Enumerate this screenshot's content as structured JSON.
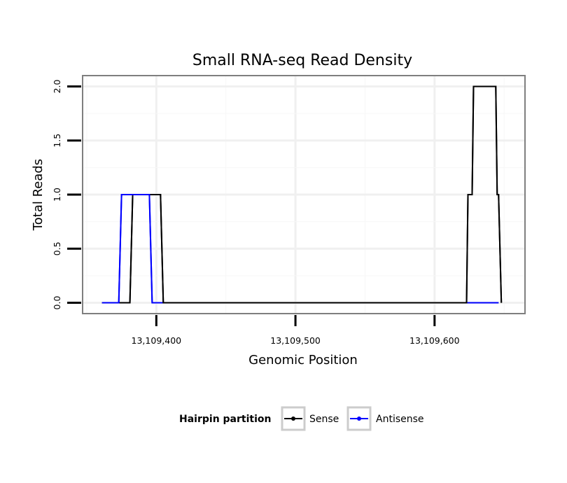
{
  "chart_data": {
    "type": "line",
    "title": "Small RNA-seq Read Density",
    "xlabel": "Genomic Position",
    "ylabel": "Total Reads",
    "xlim": [
      13109347,
      13109665
    ],
    "ylim": [
      -0.1,
      2.1
    ],
    "x_ticks": [
      {
        "value": 13109400,
        "label": "13,109,400"
      },
      {
        "value": 13109500,
        "label": "13,109,500"
      },
      {
        "value": 13109600,
        "label": "13,109,600"
      }
    ],
    "y_ticks": [
      {
        "value": 0.0,
        "label": "0.0"
      },
      {
        "value": 0.5,
        "label": "0.5"
      },
      {
        "value": 1.0,
        "label": "1.0"
      },
      {
        "value": 1.5,
        "label": "1.5"
      },
      {
        "value": 2.0,
        "label": "2.0"
      }
    ],
    "grid": true,
    "legend": {
      "title": "Hairpin partition",
      "position": "bottom"
    },
    "series": [
      {
        "name": "Sense",
        "color": "#000000",
        "points": [
          [
            13109361,
            0
          ],
          [
            13109381,
            0
          ],
          [
            13109383,
            1
          ],
          [
            13109403,
            1
          ],
          [
            13109405,
            0
          ],
          [
            13109623,
            0
          ],
          [
            13109624,
            1
          ],
          [
            13109627,
            1
          ],
          [
            13109628,
            2
          ],
          [
            13109644,
            2
          ],
          [
            13109645,
            1
          ],
          [
            13109646,
            1
          ],
          [
            13109648,
            0
          ]
        ]
      },
      {
        "name": "Antisense",
        "color": "#0000ff",
        "points": [
          [
            13109361,
            0
          ],
          [
            13109373,
            0
          ],
          [
            13109375,
            1
          ],
          [
            13109395,
            1
          ],
          [
            13109397,
            0
          ],
          [
            13109646,
            0
          ]
        ]
      }
    ]
  }
}
